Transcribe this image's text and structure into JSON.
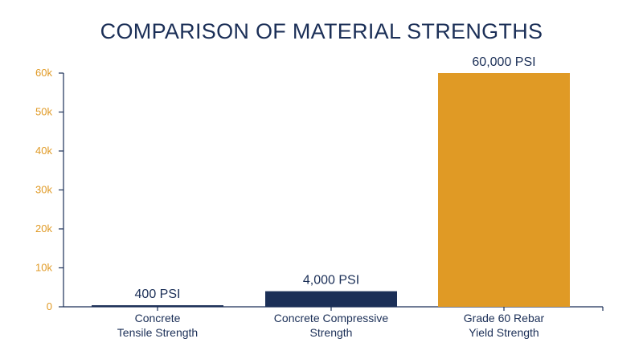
{
  "chart_data": {
    "type": "bar",
    "title": "COMPARISON OF MATERIAL STRENGTHS",
    "xlabel": "",
    "ylabel": "",
    "ylim": [
      0,
      60000
    ],
    "yticks": [
      0,
      10000,
      20000,
      30000,
      40000,
      50000,
      60000
    ],
    "ytick_labels": [
      "0",
      "10k",
      "20k",
      "30k",
      "40k",
      "50k",
      "60k"
    ],
    "categories": [
      [
        "Concrete",
        "Tensile Strength"
      ],
      [
        "Concrete Compressive",
        "Strength"
      ],
      [
        "Grade 60 Rebar",
        "Yield Strength"
      ]
    ],
    "values": [
      400,
      4000,
      60000
    ],
    "value_labels": [
      "400 PSI",
      "4,000 PSI",
      "60,000 PSI"
    ],
    "bar_colors": [
      "#1b2f57",
      "#1b2f57",
      "#e09a25"
    ],
    "grid": false,
    "axis_color": "#1b2f57",
    "tick_color": "#e09a25"
  }
}
